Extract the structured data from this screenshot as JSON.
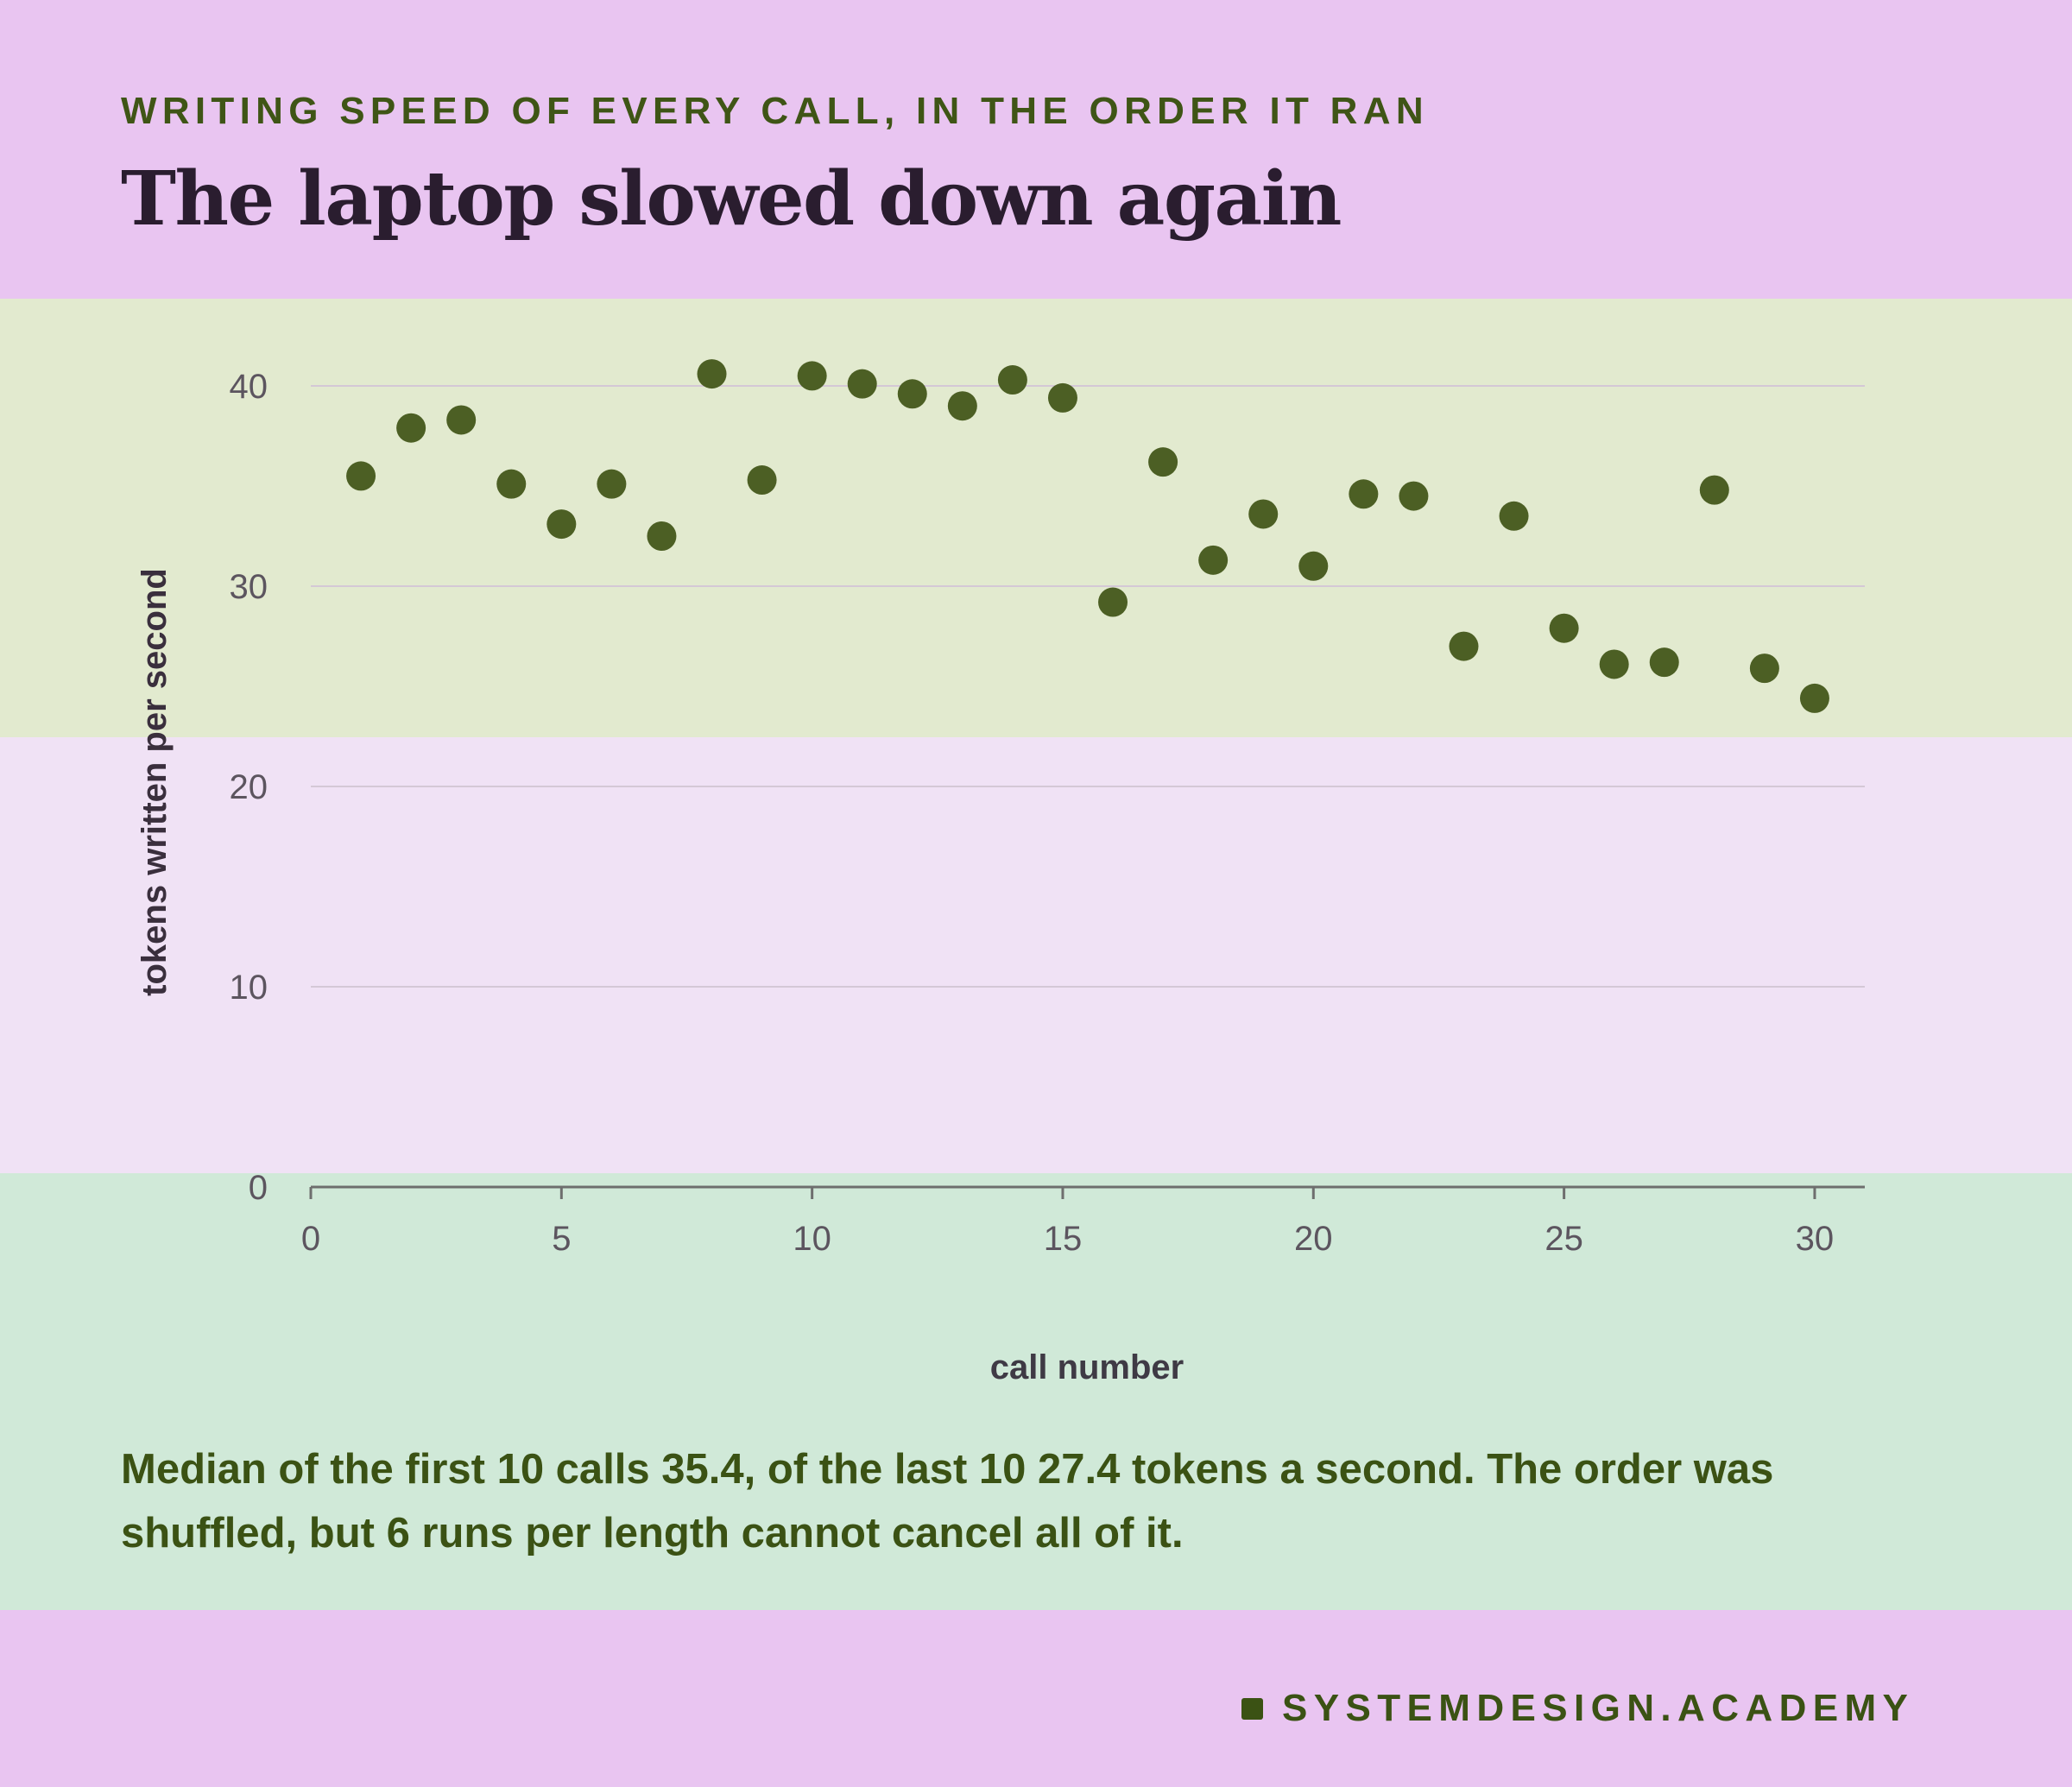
{
  "header": {
    "kicker": "WRITING SPEED OF EVERY CALL, IN THE ORDER IT RAN",
    "title": "The laptop slowed down again"
  },
  "chart_data": {
    "type": "scatter",
    "xlabel": "call number",
    "ylabel": "tokens written per second",
    "xlim": [
      0,
      31
    ],
    "ylim": [
      0,
      45
    ],
    "xticks": [
      0,
      5,
      10,
      15,
      20,
      25,
      30
    ],
    "yticks": [
      0,
      10,
      20,
      30,
      40
    ],
    "grid": "horizontal",
    "marker_color": "#4c5f24",
    "x": [
      1,
      2,
      3,
      4,
      5,
      6,
      7,
      8,
      9,
      10,
      11,
      12,
      13,
      14,
      15,
      16,
      17,
      18,
      19,
      20,
      21,
      22,
      23,
      24,
      25,
      26,
      27,
      28,
      29,
      30
    ],
    "y": [
      35.5,
      37.9,
      38.3,
      35.1,
      33.1,
      35.1,
      32.5,
      40.6,
      35.3,
      40.5,
      40.1,
      39.6,
      39.0,
      40.3,
      39.4,
      29.2,
      36.2,
      31.3,
      33.6,
      31.0,
      34.6,
      34.5,
      27.0,
      33.5,
      27.9,
      26.1,
      26.2,
      34.8,
      25.9,
      24.4
    ]
  },
  "caption": "Median of the first 10 calls 35.4, of the last 10 27.4 tokens a second. The order was shuffled, but 6 runs per length cannot cancel all of it.",
  "brand": {
    "name": "SYSTEMDESIGN.ACADEMY"
  },
  "colors": {
    "accent": "#3b5214",
    "marker": "#4c5f24",
    "title": "#2a1d2f"
  }
}
